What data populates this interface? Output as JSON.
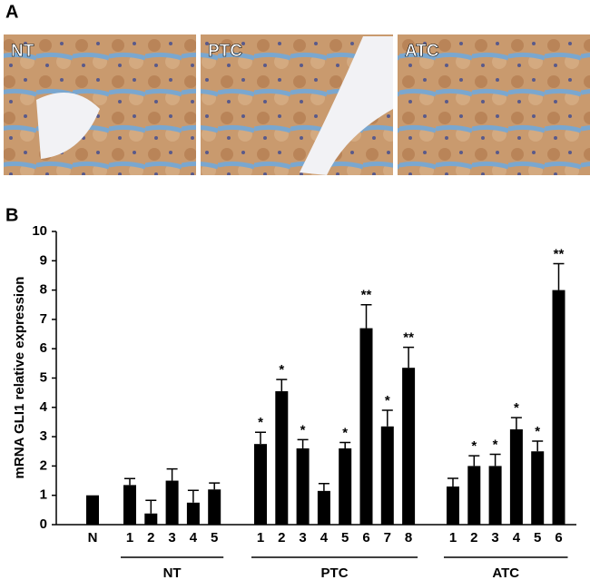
{
  "panels": {
    "a": "A",
    "b": "B"
  },
  "images": [
    {
      "label": "NT"
    },
    {
      "label": "PTC"
    },
    {
      "label": "ATC"
    }
  ],
  "chart_data": {
    "type": "bar",
    "y_label": "mRNA GLI1 relative expression",
    "color": "#000000",
    "ylim": [
      0,
      10
    ],
    "yticks": [
      0,
      1,
      2,
      3,
      4,
      5,
      6,
      7,
      8,
      9,
      10
    ],
    "groups": [
      {
        "name": null,
        "categories": [
          "N"
        ],
        "values": [
          1.0
        ],
        "errors": [
          null
        ],
        "significance": [
          null
        ]
      },
      {
        "name": "NT",
        "categories": [
          "1",
          "2",
          "3",
          "4",
          "5"
        ],
        "values": [
          1.35,
          0.38,
          1.5,
          0.75,
          1.2
        ],
        "errors": [
          0.22,
          0.45,
          0.4,
          0.42,
          0.22
        ],
        "significance": [
          null,
          null,
          null,
          null,
          null
        ]
      },
      {
        "name": "PTC",
        "categories": [
          "1",
          "2",
          "3",
          "4",
          "5",
          "6",
          "7",
          "8"
        ],
        "values": [
          2.75,
          4.55,
          2.6,
          1.15,
          2.6,
          6.7,
          3.35,
          5.35
        ],
        "errors": [
          0.4,
          0.4,
          0.3,
          0.25,
          0.2,
          0.8,
          0.55,
          0.7
        ],
        "significance": [
          "*",
          "*",
          "*",
          null,
          "*",
          "**",
          "*",
          "**"
        ]
      },
      {
        "name": "ATC",
        "categories": [
          "1",
          "2",
          "3",
          "4",
          "5",
          "6"
        ],
        "values": [
          1.3,
          2.0,
          2.0,
          3.25,
          2.5,
          8.0
        ],
        "errors": [
          0.28,
          0.35,
          0.4,
          0.4,
          0.35,
          0.9
        ],
        "significance": [
          null,
          "*",
          "*",
          "*",
          "*",
          "**"
        ]
      }
    ]
  }
}
